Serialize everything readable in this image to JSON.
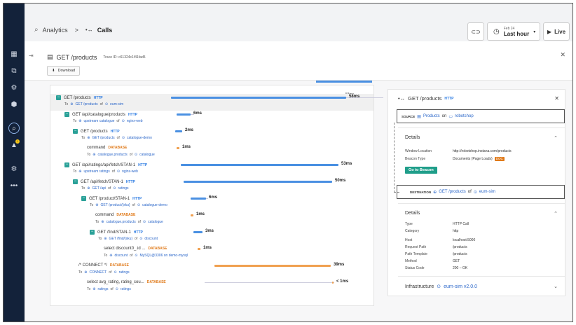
{
  "header": {
    "breadcrumb_root": "Analytics",
    "breadcrumb_sep": ">",
    "breadcrumb_current": "Calls",
    "time_small": "Feb 24",
    "time_range": "Last hour",
    "live_label": "Live"
  },
  "panel": {
    "title": "GET /products",
    "trace_id": "Trace ID: c61324c1f41fad5",
    "download_label": "Download"
  },
  "spans": [
    {
      "name": "GET /products",
      "type": "HTTP",
      "to_label": "To",
      "endpoint": "GET /products",
      "of": "of",
      "service": "eum-sim",
      "duration": "58ms"
    },
    {
      "name": "GET /api/catalogue/products",
      "type": "HTTP",
      "to_label": "To",
      "endpoint": "upstream catalogue",
      "of": "of",
      "service": "nginx-web",
      "duration": "6ms"
    },
    {
      "name": "GET /products",
      "type": "HTTP",
      "to_label": "To",
      "endpoint": "GET /products",
      "of": "of",
      "service": "catalogue-demo",
      "duration": "2ms"
    },
    {
      "name": "command",
      "type": "DATABASE",
      "to_label": "To",
      "endpoint": "catalogue.products",
      "of": "of",
      "service": "catalogue",
      "duration": "1ms"
    },
    {
      "name": "GET /api/ratings/api/fetch/STAN-1",
      "type": "HTTP",
      "to_label": "To",
      "endpoint": "upstream ratings",
      "of": "of",
      "service": "nginx-web",
      "duration": "53ms"
    },
    {
      "name": "GET /api/fetch/STAN-1",
      "type": "HTTP",
      "to_label": "To",
      "endpoint": "GET /api",
      "of": "of",
      "service": "ratings",
      "duration": "50ms"
    },
    {
      "name": "GET /product/STAN-1",
      "type": "HTTP",
      "to_label": "To",
      "endpoint": "GET /product/{sku}",
      "of": "of",
      "service": "catalogue-demo",
      "duration": "6ms"
    },
    {
      "name": "command",
      "type": "DATABASE",
      "to_label": "To",
      "endpoint": "catalogue.products",
      "of": "of",
      "service": "catalogue",
      "duration": "1ms"
    },
    {
      "name": "GET /find/STAN-1",
      "type": "HTTP",
      "to_label": "To",
      "endpoint": "GET /find/{sku}",
      "of": "of",
      "service": "discount",
      "duration": "3ms"
    },
    {
      "name": "select discount0_.id ...",
      "type": "DATABASE",
      "to_label": "To",
      "endpoint": "discount",
      "of": "of",
      "service": "MySQL@3306 on demo-mysql",
      "duration": "1ms"
    },
    {
      "name": "/* CONNECT */",
      "type": "DATABASE",
      "to_label": "To",
      "endpoint": "CONNECT",
      "of": "of",
      "service": "ratings",
      "duration": "39ms"
    },
    {
      "name": "select avg_rating, rating_cou...",
      "type": "DATABASE",
      "to_label": "To",
      "endpoint": "ratings",
      "of": "of",
      "service": "ratings",
      "duration": "< 1ms"
    }
  ],
  "scale_label": "58ms",
  "detail": {
    "title": "GET /products",
    "type": "HTTP",
    "source_label": "SOURCE",
    "source_page": "Products",
    "source_on": "on",
    "source_site": "robotshop",
    "details_title_1": "Details",
    "window_location_k": "Window Location",
    "window_location_v": "http://robotshop.instana.com/products",
    "beacon_type_k": "Beacon Type",
    "beacon_type_v": "Documents (Page Loads)",
    "doc_badge": "DOC",
    "goto_label": "Go to Beacon",
    "destination_label": "DESTINATION",
    "destination_endpoint": "GET /products",
    "destination_of": "of",
    "destination_service": "eum-sim",
    "details_title_2": "Details",
    "kv": [
      {
        "k": "Type",
        "v": "HTTP Call"
      },
      {
        "k": "Category",
        "v": "http"
      },
      {
        "k": "Host",
        "v": "localhost:5000"
      },
      {
        "k": "Request Path",
        "v": "/products"
      },
      {
        "k": "Path Template",
        "v": "/products"
      },
      {
        "k": "Method",
        "v": "GET"
      },
      {
        "k": "Status Code",
        "v": "200 – OK"
      }
    ],
    "infra_label": "Infrastructure",
    "infra_value": "eum-sim v2.0.0"
  }
}
